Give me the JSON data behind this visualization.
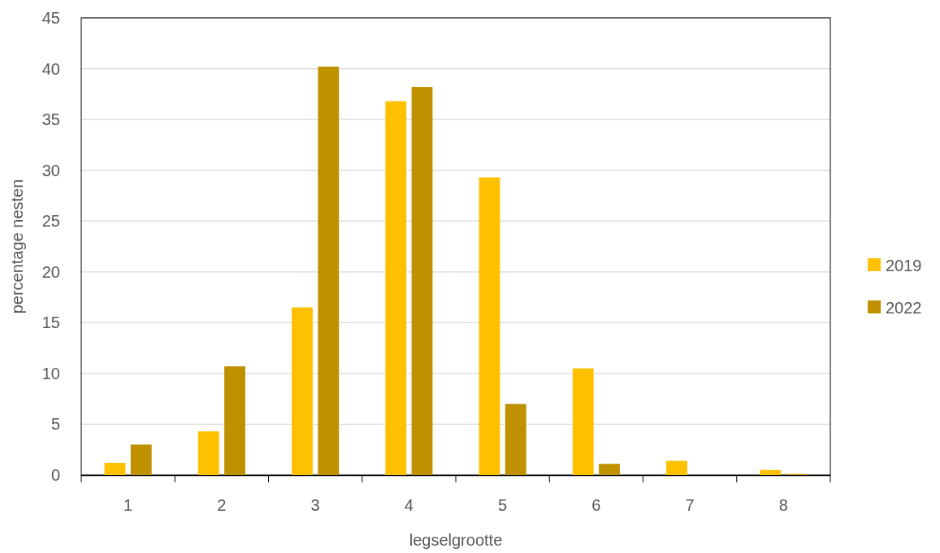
{
  "chart_data": {
    "type": "bar",
    "xlabel": "legselgrootte",
    "ylabel": "percentage nesten",
    "categories": [
      "1",
      "2",
      "3",
      "4",
      "5",
      "6",
      "7",
      "8"
    ],
    "series": [
      {
        "name": "2019",
        "color": "#ffc000",
        "values": [
          1.2,
          4.3,
          16.5,
          36.8,
          29.3,
          10.5,
          1.4,
          0.5
        ]
      },
      {
        "name": "2022",
        "color": "#bf9000",
        "values": [
          3.0,
          10.7,
          40.2,
          38.2,
          7.0,
          1.1,
          0,
          0.1
        ]
      }
    ],
    "ylim": [
      0,
      45
    ],
    "yticks": [
      0,
      5,
      10,
      15,
      20,
      25,
      30,
      35,
      40,
      45
    ],
    "grid": "y",
    "legend": "right"
  }
}
